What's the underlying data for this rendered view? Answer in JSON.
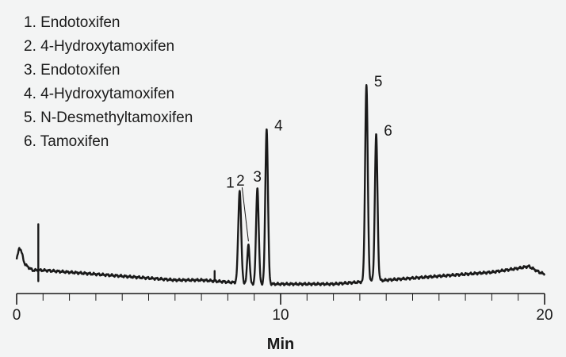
{
  "chart_data": {
    "type": "line",
    "title": "",
    "xlabel": "Min",
    "ylabel": "",
    "xlim": [
      0,
      20
    ],
    "x_ticks": [
      0,
      10,
      20
    ],
    "x_tick_labels": [
      "0",
      "10",
      "20"
    ],
    "x_minor_tick_step": 1,
    "y_axis_shown": false,
    "grid": false,
    "legend_position": "top-left",
    "legend": [
      "1. Endotoxifen",
      "2. 4-Hydroxytamoxifen",
      "3. Endotoxifen",
      "4. 4-Hydroxytamoxifen",
      "5. N-Desmethyltamoxifen",
      "6. Tamoxifen"
    ],
    "series": [
      {
        "color": "#1a1a1a",
        "baseline": [
          [
            0.0,
            0.12
          ],
          [
            0.1,
            0.16
          ],
          [
            0.3,
            0.1
          ],
          [
            0.6,
            0.07
          ],
          [
            1.0,
            0.07
          ],
          [
            2.0,
            0.06
          ],
          [
            3.0,
            0.05
          ],
          [
            4.0,
            0.04
          ],
          [
            5.0,
            0.03
          ],
          [
            6.0,
            0.02
          ],
          [
            7.0,
            0.02
          ],
          [
            8.0,
            0.01
          ],
          [
            9.0,
            0.0
          ],
          [
            10.0,
            0.0
          ],
          [
            11.0,
            0.0
          ],
          [
            12.0,
            0.0
          ],
          [
            13.0,
            0.01
          ],
          [
            14.0,
            0.02
          ],
          [
            15.0,
            0.03
          ],
          [
            16.0,
            0.04
          ],
          [
            17.0,
            0.05
          ],
          [
            18.0,
            0.06
          ],
          [
            19.0,
            0.08
          ],
          [
            19.4,
            0.09
          ],
          [
            19.8,
            0.06
          ],
          [
            20.0,
            0.05
          ]
        ],
        "peaks": [
          {
            "label": "1",
            "rt": 8.45,
            "height": 0.47,
            "width": 0.055
          },
          {
            "label": "2",
            "rt": 8.78,
            "height": 0.2,
            "width": 0.045
          },
          {
            "label": "3",
            "rt": 9.12,
            "height": 0.49,
            "width": 0.05
          },
          {
            "label": "4",
            "rt": 9.47,
            "height": 0.79,
            "width": 0.05
          },
          {
            "label": "5",
            "rt": 13.25,
            "height": 1.0,
            "width": 0.05
          },
          {
            "label": "6",
            "rt": 13.62,
            "height": 0.74,
            "width": 0.05
          }
        ],
        "spikes": [
          {
            "rt": 0.82,
            "up": 0.24,
            "down": 0.05
          },
          {
            "rt": 7.5,
            "up": 0.05,
            "down": 0.0
          }
        ]
      }
    ]
  }
}
